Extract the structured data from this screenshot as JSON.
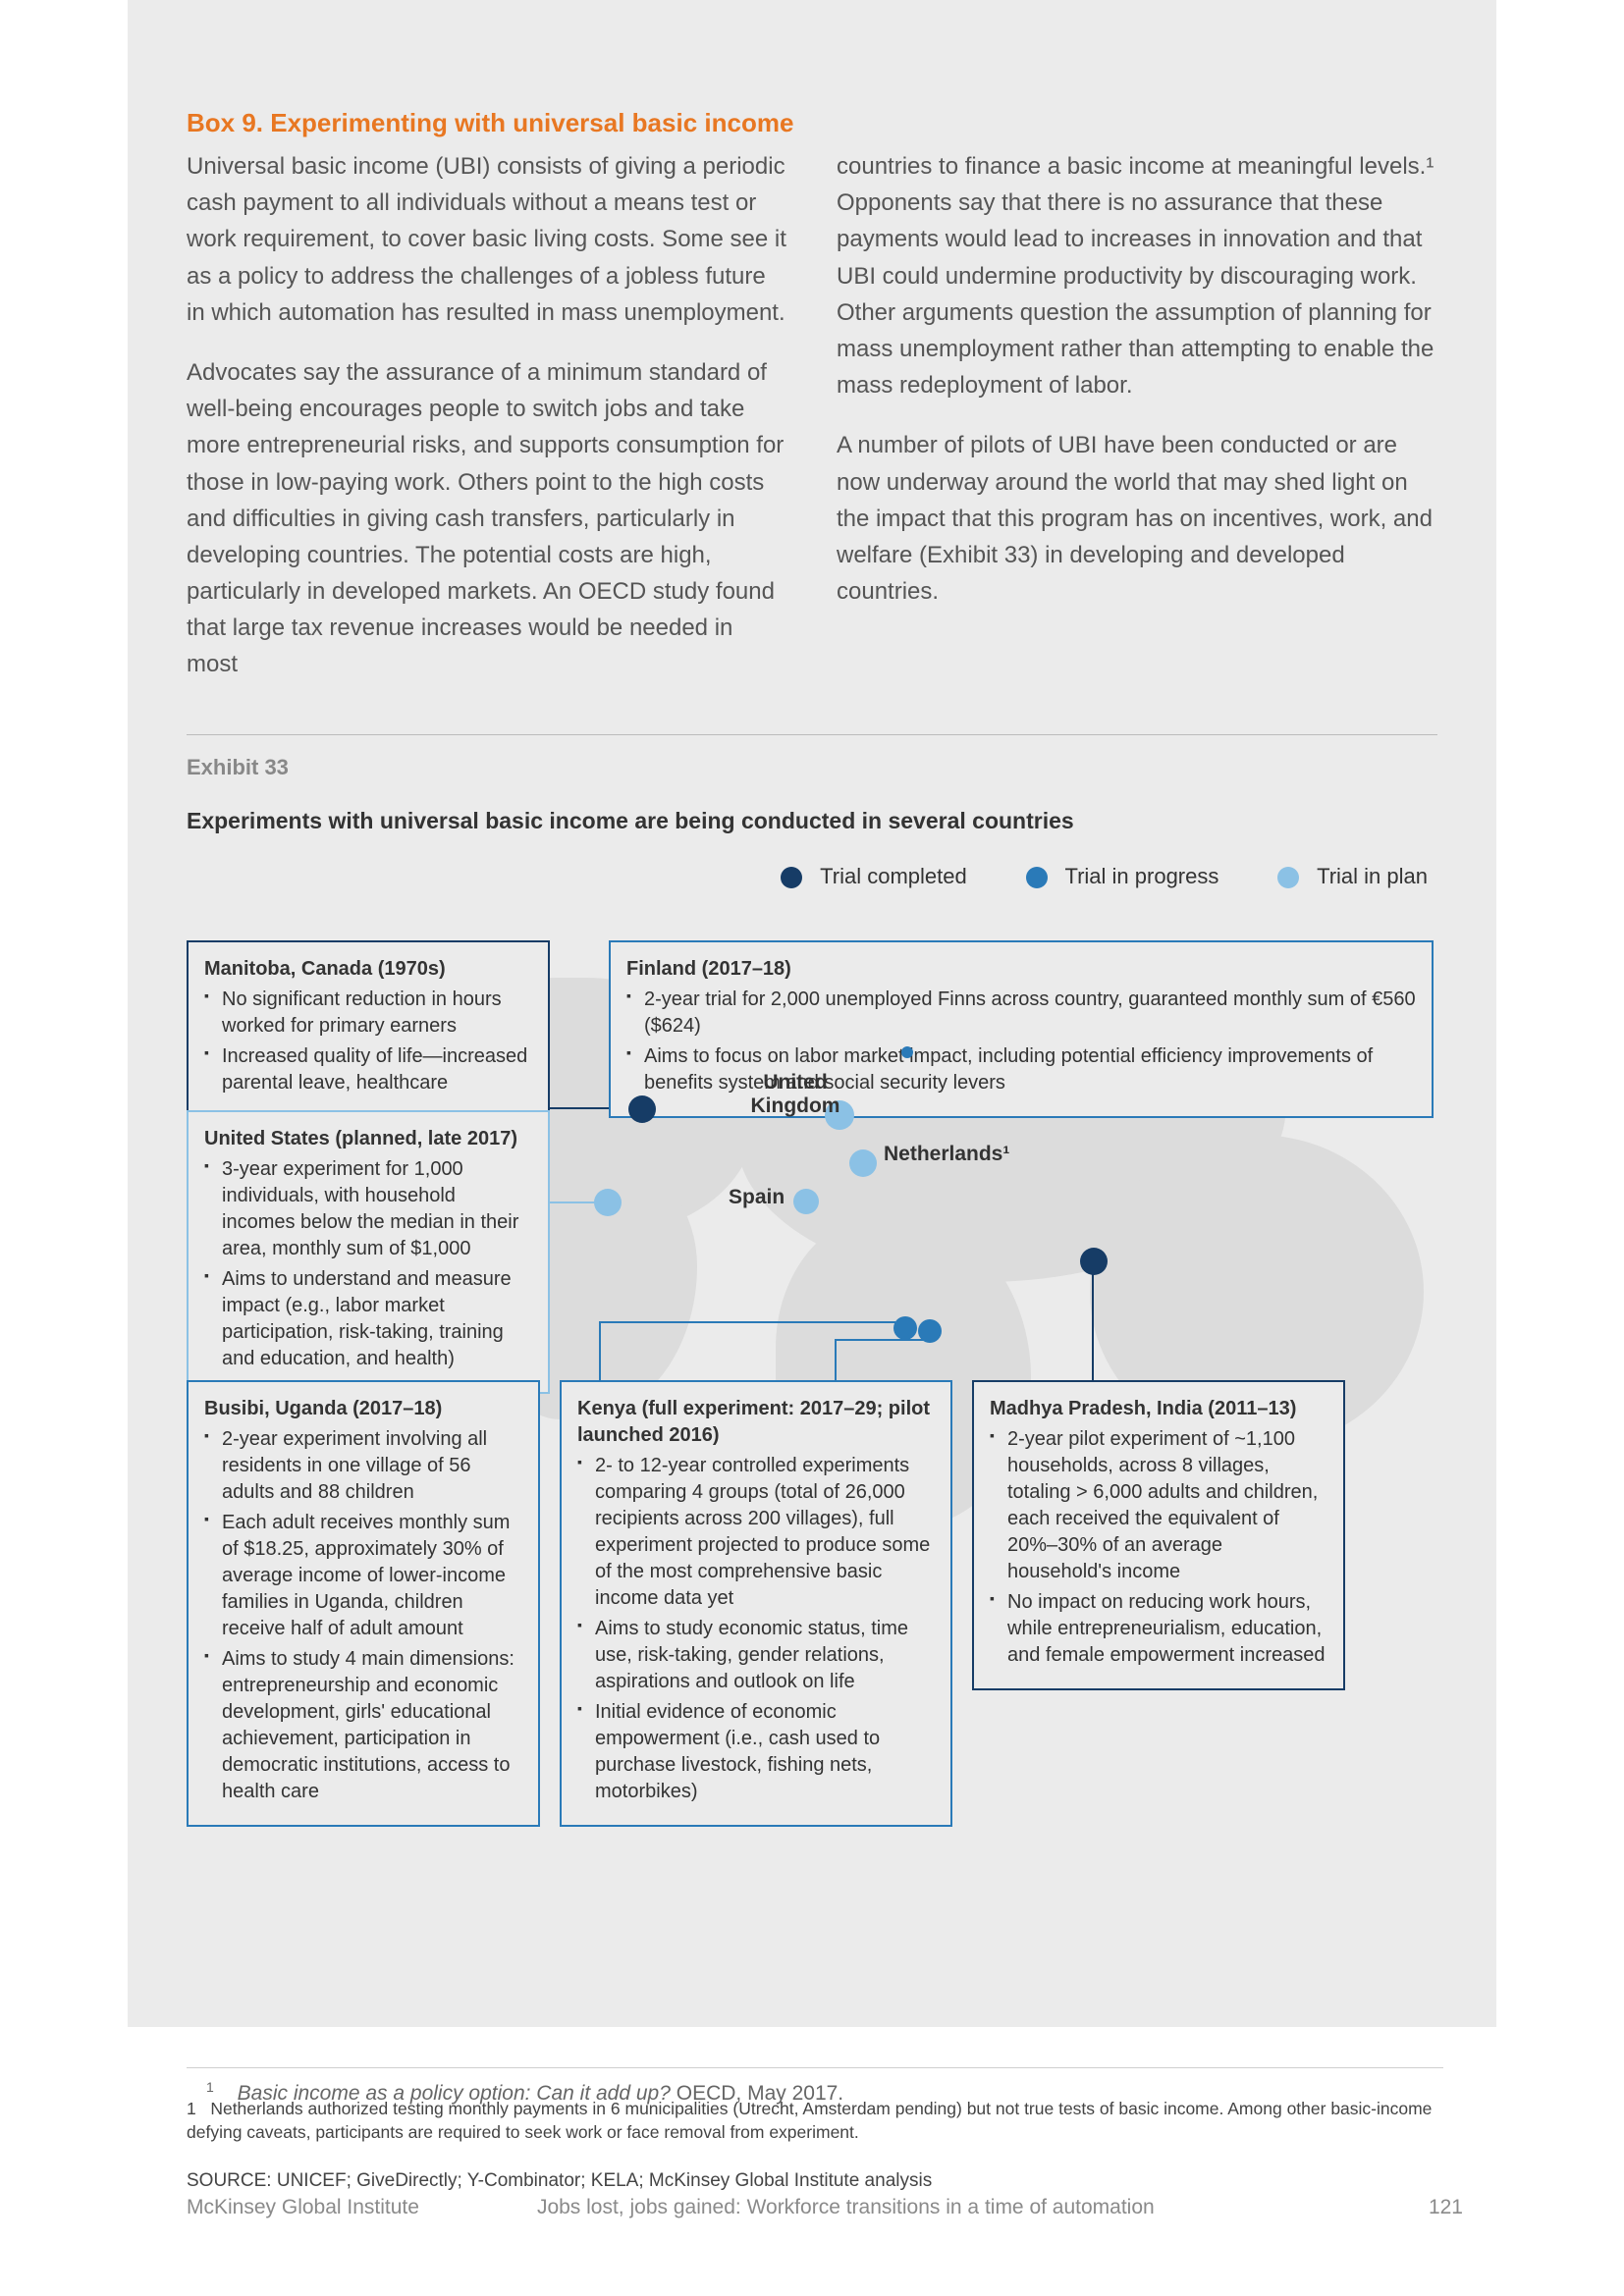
{
  "colors": {
    "accent_orange": "#e87722",
    "completed": "#163c66",
    "in_progress": "#2a7ab8",
    "in_plan": "#8bc1e5",
    "panel_bg": "#ebebeb",
    "text": "#444444",
    "land": "#dcdcdc",
    "box_border_dark": "#163c66",
    "box_border_mid": "#2a7ab8",
    "box_border_light": "#8bc1e5"
  },
  "box": {
    "heading": "Box 9. Experimenting with universal basic income",
    "p1": "Universal basic income (UBI) consists of giving a periodic cash payment to all individuals without a means test or work requirement, to cover basic living costs. Some see it as a policy to address the challenges of a jobless future in which automation has resulted in mass unemployment.",
    "p2": "Advocates say the assurance of a minimum standard of well-being encourages people to switch jobs and take more entrepreneurial risks, and supports consumption for those in low-paying work. Others point to the high costs and difficulties in giving cash transfers, particularly in developing countries. The potential costs are high, particularly in developed markets. An OECD study found that large tax revenue increases would be needed in most",
    "p3": "countries to finance a basic income at meaningful levels.¹ Opponents say that there is no assurance that these payments would lead to increases in innovation and that UBI could undermine productivity by discouraging work. Other arguments question the assumption of planning for mass unemployment rather than attempting to enable the mass redeployment of labor.",
    "p4": "A number of pilots of UBI have been conducted or are now underway around the world that may shed light on the impact that this program has on incentives, work, and welfare (Exhibit 33) in developing and developed countries."
  },
  "exhibit": {
    "label": "Exhibit 33",
    "title": "Experiments with universal basic income are being conducted in several countries",
    "legend": {
      "completed": "Trial completed",
      "in_progress": "Trial in progress",
      "in_plan": "Trial in plan"
    },
    "map_labels": {
      "uk": "United\nKingdom",
      "netherlands": "Netherlands¹",
      "spain": "Spain"
    },
    "callouts": {
      "manitoba": {
        "title": "Manitoba, Canada (1970s)",
        "bullets": [
          "No significant reduction in hours worked for primary earners",
          "Increased quality of life—increased parental leave, healthcare"
        ],
        "status": "completed"
      },
      "us": {
        "title": "United States (planned, late 2017)",
        "bullets": [
          "3-year experiment for 1,000 individuals, with household incomes below the median in their area, monthly sum of $1,000",
          "Aims to understand and measure impact (e.g., labor market participation, risk-taking, training and education, and health)"
        ],
        "status": "in_plan"
      },
      "finland": {
        "title": "Finland (2017–18)",
        "bullets": [
          "2-year trial for 2,000 unemployed Finns across country, guaranteed monthly sum of €560 ($624)",
          "Aims to focus on labor market impact, including potential efficiency improvements of benefits system and social security levers"
        ],
        "status": "in_progress"
      },
      "uganda": {
        "title": "Busibi, Uganda (2017–18)",
        "bullets": [
          "2-year experiment involving all residents in one village of 56 adults and 88 children",
          "Each adult receives monthly sum of $18.25, approximately 30% of average income of lower-income families in Uganda, children receive half of adult amount",
          "Aims to study 4 main dimensions: entrepreneurship and economic development, girls' educational achievement, participation in democratic institutions, access to health care"
        ],
        "status": "in_progress"
      },
      "kenya": {
        "title": "Kenya (full experiment: 2017–29; pilot launched 2016)",
        "bullets": [
          "2- to 12-year controlled experiments comparing 4 groups (total of 26,000 recipients across 200 villages), full experiment projected to produce some of the most comprehensive basic income data yet",
          "Aims to study economic status, time use, risk-taking, gender relations, aspirations and outlook on life",
          "Initial evidence of economic empowerment (i.e., cash used to purchase livestock, fishing nets, motorbikes)"
        ],
        "status": "in_progress"
      },
      "india": {
        "title": "Madhya Pradesh, India (2011–13)",
        "bullets": [
          "2-year pilot experiment of ~1,100 households, across 8 villages, totaling > 6,000 adults and children, each received the equivalent of 20%–30% of an average household's income",
          "No impact on reducing work hours, while entrepreneurialism, education, and female empowerment increased"
        ],
        "status": "completed"
      }
    },
    "note": "1   Netherlands authorized testing monthly payments in 6 municipalities (Utrecht, Amsterdam pending) but not true tests of basic income. Among other basic-income defying caveats, participants are required to seek work or face removal from experiment.",
    "source": "SOURCE: UNICEF; GiveDirectly; Y-Combinator; KELA; McKinsey Global Institute analysis"
  },
  "footnote": {
    "sup": "1",
    "text_italic": "Basic income as a policy option: Can it add up?",
    "text_rest": " OECD, May 2017."
  },
  "footer": {
    "inst": "McKinsey Global Institute",
    "title": "Jobs lost, jobs gained: Workforce transitions in a time of automation",
    "page": "121"
  }
}
